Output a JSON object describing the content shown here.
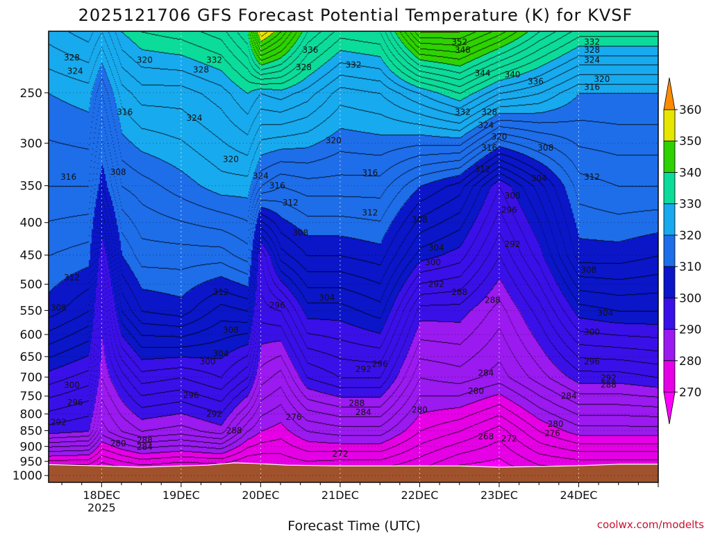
{
  "chart_data": {
    "type": "heatmap",
    "title": "2025121706 GFS Forecast Potential Temperature (K) for KVSF",
    "xlabel": "Forecast Time (UTC)",
    "ylabel": "",
    "credit": "coolwx.com/modelts",
    "x_range_hours": [
      -16,
      168
    ],
    "x_ticks": [
      {
        "hour": 0,
        "label": "18DEC",
        "sublabel": "2025"
      },
      {
        "hour": 24,
        "label": "19DEC"
      },
      {
        "hour": 48,
        "label": "20DEC"
      },
      {
        "hour": 72,
        "label": "21DEC"
      },
      {
        "hour": 96,
        "label": "22DEC"
      },
      {
        "hour": 120,
        "label": "23DEC"
      },
      {
        "hour": 144,
        "label": "24DEC"
      }
    ],
    "y_range_hpa": [
      1025,
      200
    ],
    "y_ticks": [
      250,
      300,
      350,
      400,
      450,
      500,
      550,
      600,
      650,
      700,
      750,
      800,
      850,
      900,
      950,
      1000
    ],
    "colorbar": {
      "levels": [
        270,
        280,
        290,
        300,
        310,
        320,
        330,
        340,
        350,
        360
      ],
      "colors": [
        "#e600e6",
        "#9a1af0",
        "#3a10e8",
        "#0a16c8",
        "#1e6eea",
        "#18aaee",
        "#0cdc9a",
        "#2ed200",
        "#e6e600",
        "#f5a400"
      ],
      "under_color": "#ff00ff",
      "over_color": "#ff8c00"
    },
    "contour_interval_K": 2,
    "surface_color": "#a0522d",
    "surface_pressure_hpa": [
      [
        -16,
        961
      ],
      [
        0,
        966
      ],
      [
        12,
        970
      ],
      [
        24,
        966
      ],
      [
        32,
        963
      ],
      [
        40,
        955
      ],
      [
        46,
        957
      ],
      [
        56,
        963
      ],
      [
        72,
        966
      ],
      [
        84,
        966
      ],
      [
        96,
        966
      ],
      [
        108,
        966
      ],
      [
        120,
        970
      ],
      [
        132,
        968
      ],
      [
        144,
        965
      ],
      [
        156,
        960
      ],
      [
        168,
        960
      ]
    ],
    "theta_profiles": [
      {
        "hour": -16,
        "p": [
          1000,
          850,
          700,
          550,
          450,
          350,
          250,
          200
        ],
        "theta": [
          271,
          291,
          299,
          309,
          312,
          316,
          320,
          325
        ]
      },
      {
        "hour": -4,
        "p": [
          1000,
          850,
          700,
          550,
          450,
          350,
          250,
          200
        ],
        "theta": [
          271,
          290,
          297,
          306,
          311,
          316,
          321,
          327
        ]
      },
      {
        "hour": 0,
        "p": [
          1000,
          850,
          700,
          550,
          450,
          350,
          250,
          200
        ],
        "theta": [
          270,
          283,
          288,
          291,
          297,
          308,
          316,
          324
        ]
      },
      {
        "hour": 6,
        "p": [
          1000,
          850,
          700,
          550,
          450,
          350,
          250,
          200
        ],
        "theta": [
          271,
          286,
          293,
          304,
          310,
          316,
          323,
          330
        ]
      },
      {
        "hour": 12,
        "p": [
          1000,
          850,
          700,
          550,
          450,
          350,
          250,
          200
        ],
        "theta": [
          272,
          288,
          297,
          308,
          313,
          317,
          325,
          332
        ]
      },
      {
        "hour": 24,
        "p": [
          1000,
          850,
          700,
          550,
          450,
          350,
          250,
          200
        ],
        "theta": [
          271,
          287,
          296,
          309,
          313,
          319,
          325,
          333
        ]
      },
      {
        "hour": 36,
        "p": [
          1000,
          850,
          700,
          550,
          450,
          350,
          250,
          200
        ],
        "theta": [
          271,
          289,
          298,
          305,
          313,
          321,
          327,
          335
        ]
      },
      {
        "hour": 44,
        "p": [
          1000,
          850,
          700,
          550,
          450,
          350,
          250,
          200
        ],
        "theta": [
          271,
          282,
          294,
          306,
          315,
          321,
          330,
          340
        ]
      },
      {
        "hour": 48,
        "p": [
          1000,
          850,
          700,
          550,
          450,
          350,
          250,
          200
        ],
        "theta": [
          272,
          280,
          287,
          293,
          296,
          316,
          328,
          354
        ]
      },
      {
        "hour": 54,
        "p": [
          1000,
          850,
          700,
          550,
          450,
          350,
          250,
          200
        ],
        "theta": [
          273,
          279,
          285,
          294,
          305,
          314,
          329,
          348
        ]
      },
      {
        "hour": 62,
        "p": [
          1000,
          850,
          700,
          550,
          450,
          350,
          250,
          200
        ],
        "theta": [
          273,
          282,
          292,
          301,
          308,
          315,
          327,
          338
        ]
      },
      {
        "hour": 72,
        "p": [
          1000,
          850,
          700,
          550,
          450,
          350,
          250,
          200
        ],
        "theta": [
          272,
          283,
          294,
          301,
          308,
          315,
          323,
          333
        ]
      },
      {
        "hour": 84,
        "p": [
          1000,
          850,
          700,
          550,
          450,
          350,
          250,
          200
        ],
        "theta": [
          272,
          283,
          294,
          303,
          309,
          315,
          324,
          334
        ]
      },
      {
        "hour": 96,
        "p": [
          1000,
          850,
          700,
          550,
          450,
          350,
          250,
          200
        ],
        "theta": [
          271,
          278,
          284,
          291,
          301,
          310,
          328,
          350
        ]
      },
      {
        "hour": 108,
        "p": [
          1000,
          850,
          700,
          550,
          450,
          350,
          250,
          200
        ],
        "theta": [
          268,
          276,
          285,
          291,
          299,
          307,
          332,
          350
        ]
      },
      {
        "hour": 120,
        "p": [
          1000,
          850,
          700,
          550,
          450,
          350,
          250,
          200
        ],
        "theta": [
          268,
          273,
          283,
          287,
          292,
          298,
          326,
          345
        ]
      },
      {
        "hour": 132,
        "p": [
          1000,
          850,
          700,
          550,
          450,
          350,
          250,
          200
        ],
        "theta": [
          270,
          278,
          287,
          293,
          299,
          305,
          324,
          338
        ]
      },
      {
        "hour": 144,
        "p": [
          1000,
          850,
          700,
          550,
          450,
          350,
          250,
          200
        ],
        "theta": [
          270,
          281,
          291,
          301,
          309,
          313,
          320,
          333
        ]
      },
      {
        "hour": 156,
        "p": [
          1000,
          850,
          700,
          550,
          450,
          350,
          250,
          200
        ],
        "theta": [
          270,
          281,
          291,
          302,
          309,
          314,
          320,
          333
        ]
      },
      {
        "hour": 168,
        "p": [
          1000,
          850,
          700,
          550,
          450,
          350,
          250,
          200
        ],
        "theta": [
          270,
          281,
          292,
          302,
          308,
          314,
          320,
          333
        ]
      }
    ],
    "contour_labels": [
      {
        "value": 328,
        "hour": -9,
        "p": 220
      },
      {
        "value": 320,
        "hour": 13,
        "p": 222
      },
      {
        "value": 332,
        "hour": 34,
        "p": 222
      },
      {
        "value": 336,
        "hour": 63,
        "p": 214
      },
      {
        "value": 352,
        "hour": 108,
        "p": 208
      },
      {
        "value": 348,
        "hour": 109,
        "p": 214
      },
      {
        "value": 332,
        "hour": 148,
        "p": 208
      },
      {
        "value": 328,
        "hour": 148,
        "p": 214
      },
      {
        "value": 324,
        "hour": -8,
        "p": 231
      },
      {
        "value": 328,
        "hour": 30,
        "p": 230
      },
      {
        "value": 328,
        "hour": 61,
        "p": 228
      },
      {
        "value": 332,
        "hour": 76,
        "p": 226
      },
      {
        "value": 344,
        "hour": 115,
        "p": 233
      },
      {
        "value": 340,
        "hour": 124,
        "p": 234
      },
      {
        "value": 336,
        "hour": 131,
        "p": 240
      },
      {
        "value": 324,
        "hour": 148,
        "p": 222
      },
      {
        "value": 320,
        "hour": 151,
        "p": 238
      },
      {
        "value": 316,
        "hour": 148,
        "p": 245
      },
      {
        "value": 316,
        "hour": 7,
        "p": 268
      },
      {
        "value": 324,
        "hour": 28,
        "p": 274
      },
      {
        "value": 332,
        "hour": 109,
        "p": 268
      },
      {
        "value": 328,
        "hour": 117,
        "p": 268
      },
      {
        "value": 324,
        "hour": 116,
        "p": 281
      },
      {
        "value": 320,
        "hour": 70,
        "p": 297
      },
      {
        "value": 320,
        "hour": 120,
        "p": 293
      },
      {
        "value": 316,
        "hour": 117,
        "p": 305
      },
      {
        "value": 308,
        "hour": 134,
        "p": 305
      },
      {
        "value": 320,
        "hour": 39,
        "p": 318
      },
      {
        "value": 312,
        "hour": 115,
        "p": 330
      },
      {
        "value": 308,
        "hour": 5,
        "p": 333
      },
      {
        "value": 316,
        "hour": -10,
        "p": 339
      },
      {
        "value": 324,
        "hour": 48,
        "p": 338
      },
      {
        "value": 316,
        "hour": 81,
        "p": 334
      },
      {
        "value": 304,
        "hour": 132,
        "p": 341
      },
      {
        "value": 312,
        "hour": 148,
        "p": 339
      },
      {
        "value": 316,
        "hour": 53,
        "p": 350
      },
      {
        "value": 312,
        "hour": 57,
        "p": 372
      },
      {
        "value": 300,
        "hour": 124,
        "p": 363
      },
      {
        "value": 296,
        "hour": 123,
        "p": 382
      },
      {
        "value": 312,
        "hour": 81,
        "p": 386
      },
      {
        "value": 308,
        "hour": 96,
        "p": 396
      },
      {
        "value": 308,
        "hour": 60,
        "p": 415
      },
      {
        "value": 304,
        "hour": 101,
        "p": 438
      },
      {
        "value": 292,
        "hour": 124,
        "p": 433
      },
      {
        "value": 300,
        "hour": 100,
        "p": 462
      },
      {
        "value": 308,
        "hour": 147,
        "p": 475
      },
      {
        "value": 312,
        "hour": -9,
        "p": 488
      },
      {
        "value": 312,
        "hour": 36,
        "p": 515
      },
      {
        "value": 292,
        "hour": 101,
        "p": 500
      },
      {
        "value": 288,
        "hour": 108,
        "p": 515
      },
      {
        "value": 304,
        "hour": 68,
        "p": 525
      },
      {
        "value": 288,
        "hour": 118,
        "p": 530
      },
      {
        "value": 296,
        "hour": 53,
        "p": 540
      },
      {
        "value": 308,
        "hour": -13,
        "p": 545
      },
      {
        "value": 304,
        "hour": 152,
        "p": 555
      },
      {
        "value": 308,
        "hour": 39,
        "p": 590
      },
      {
        "value": 300,
        "hour": 148,
        "p": 595
      },
      {
        "value": 304,
        "hour": 36,
        "p": 643
      },
      {
        "value": 300,
        "hour": 32,
        "p": 662
      },
      {
        "value": 296,
        "hour": 84,
        "p": 668
      },
      {
        "value": 296,
        "hour": 148,
        "p": 662
      },
      {
        "value": 292,
        "hour": 79,
        "p": 680
      },
      {
        "value": 284,
        "hour": 116,
        "p": 690
      },
      {
        "value": 292,
        "hour": 153,
        "p": 702
      },
      {
        "value": 300,
        "hour": -9,
        "p": 721
      },
      {
        "value": 288,
        "hour": 153,
        "p": 720
      },
      {
        "value": 280,
        "hour": 113,
        "p": 736
      },
      {
        "value": 296,
        "hour": 27,
        "p": 748
      },
      {
        "value": 284,
        "hour": 141,
        "p": 750
      },
      {
        "value": 296,
        "hour": -8,
        "p": 768
      },
      {
        "value": 288,
        "hour": 77,
        "p": 770
      },
      {
        "value": 280,
        "hour": 96,
        "p": 788
      },
      {
        "value": 284,
        "hour": 79,
        "p": 795
      },
      {
        "value": 292,
        "hour": 34,
        "p": 800
      },
      {
        "value": 276,
        "hour": 58,
        "p": 809
      },
      {
        "value": 292,
        "hour": -13,
        "p": 825
      },
      {
        "value": 280,
        "hour": 137,
        "p": 830
      },
      {
        "value": 288,
        "hour": 40,
        "p": 850
      },
      {
        "value": 276,
        "hour": 136,
        "p": 858
      },
      {
        "value": 268,
        "hour": 116,
        "p": 868
      },
      {
        "value": 272,
        "hour": 123,
        "p": 875
      },
      {
        "value": 288,
        "hour": 13,
        "p": 880
      },
      {
        "value": 280,
        "hour": 5,
        "p": 890
      },
      {
        "value": 284,
        "hour": 13,
        "p": 902
      },
      {
        "value": 272,
        "hour": 72,
        "p": 925
      }
    ]
  }
}
